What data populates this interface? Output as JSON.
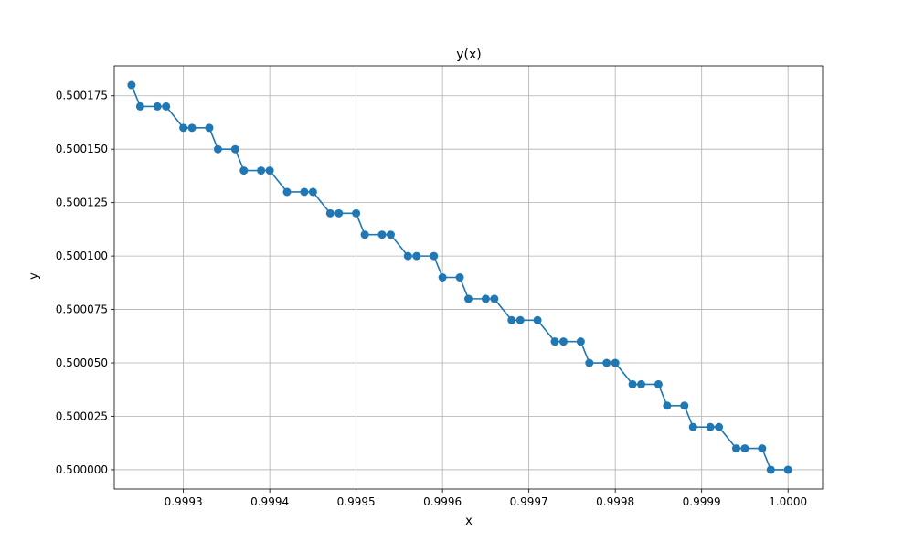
{
  "chart_data": {
    "type": "line",
    "title": "y(x)",
    "xlabel": "x",
    "ylabel": "y",
    "xlim": [
      0.99922,
      1.00004
    ],
    "ylim": [
      0.499991,
      0.500189
    ],
    "x_ticks": [
      0.9993,
      0.9994,
      0.9995,
      0.9996,
      0.9997,
      0.9998,
      0.9999,
      1.0
    ],
    "x_tick_labels": [
      "0.9993",
      "0.9994",
      "0.9995",
      "0.9996",
      "0.9997",
      "0.9998",
      "0.9999",
      "1.0000"
    ],
    "y_ticks": [
      0.5,
      0.500025,
      0.50005,
      0.500075,
      0.5001,
      0.500125,
      0.50015,
      0.500175
    ],
    "y_tick_labels": [
      "0.500000",
      "0.500025",
      "0.500050",
      "0.500075",
      "0.500100",
      "0.500125",
      "0.500150",
      "0.500175"
    ],
    "grid": true,
    "marker": "circle",
    "color": "#1f77b4",
    "series": [
      {
        "x": [
          0.99924,
          0.99925,
          0.99927,
          0.99928,
          0.9993,
          0.99931,
          0.99933,
          0.99934,
          0.99936,
          0.99937,
          0.99939,
          0.9994,
          0.99942,
          0.99944,
          0.99945,
          0.99947,
          0.99948,
          0.9995,
          0.99951,
          0.99953,
          0.99954,
          0.99956,
          0.99957,
          0.99959,
          0.9996,
          0.99962,
          0.99963,
          0.99965,
          0.99966,
          0.99968,
          0.99969,
          0.99971,
          0.99973,
          0.99974,
          0.99976,
          0.99977,
          0.99979,
          0.9998,
          0.99982,
          0.99983,
          0.99985,
          0.99986,
          0.99988,
          0.99989,
          0.99991,
          0.99992,
          0.99994,
          0.99995,
          0.99997,
          0.99998,
          1.0
        ],
        "y": [
          0.50018,
          0.50017,
          0.50017,
          0.50017,
          0.50016,
          0.50016,
          0.50016,
          0.50015,
          0.50015,
          0.50014,
          0.50014,
          0.50014,
          0.50013,
          0.50013,
          0.50013,
          0.50012,
          0.50012,
          0.50012,
          0.50011,
          0.50011,
          0.50011,
          0.5001,
          0.5001,
          0.5001,
          0.50009,
          0.50009,
          0.50008,
          0.50008,
          0.50008,
          0.50007,
          0.50007,
          0.50007,
          0.50006,
          0.50006,
          0.50006,
          0.50005,
          0.50005,
          0.50005,
          0.50004,
          0.50004,
          0.50004,
          0.50003,
          0.50003,
          0.50002,
          0.50002,
          0.50002,
          0.50001,
          0.50001,
          0.50001,
          0.5,
          0.5
        ]
      }
    ]
  }
}
